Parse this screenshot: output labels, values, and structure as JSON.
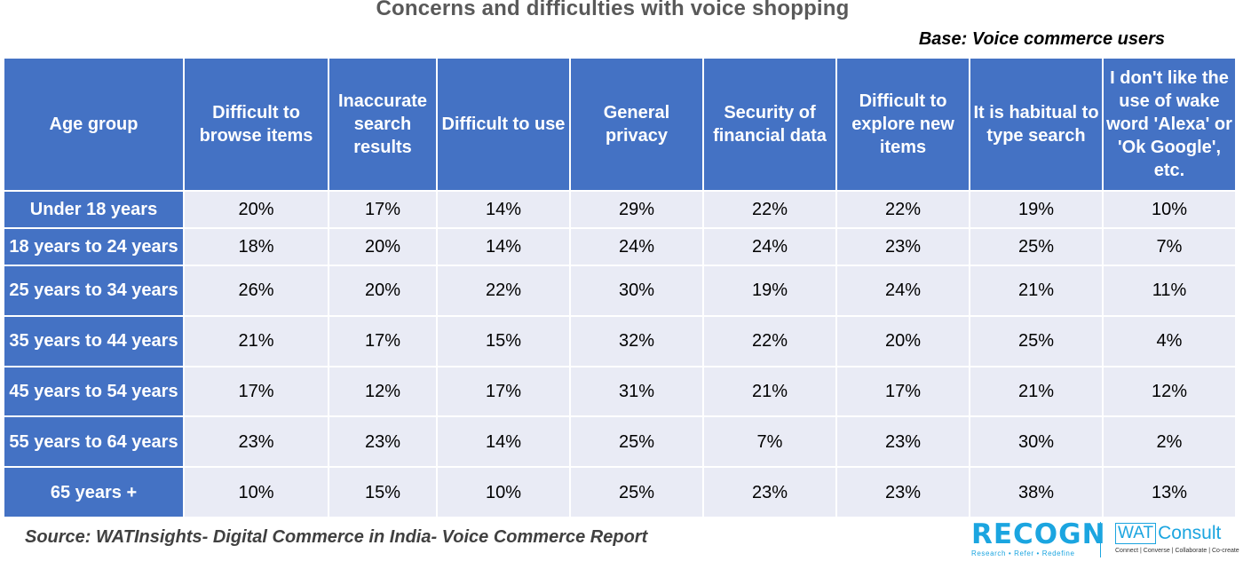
{
  "title": "Concerns and difficulties with voice shopping",
  "base_note": "Base: Voice commerce users",
  "source": "Source: WATInsights- Digital Commerce in India- Voice Commerce Report",
  "logos": {
    "recogn_word": "RECOGN",
    "recogn_tagline": "Research • Refer • Redefine",
    "wat_box": "WAT",
    "wat_word": "Consult",
    "wat_tagline": "Connect | Converse | Collaborate | Co-create"
  },
  "colors": {
    "header_bg": "#4472C4",
    "cell_bg": "#E9EBF5",
    "logo": "#1BA5E0"
  },
  "chart_data": {
    "type": "table",
    "title": "Concerns and difficulties with voice shopping",
    "columns": [
      "Age group",
      "Difficult to browse items",
      "Inaccurate search results",
      "Difficult to use",
      "General privacy",
      "Security of financial data",
      "Difficult to explore new items",
      "It is habitual to type search",
      "I don't like the use of wake word 'Alexa' or 'Ok Google', etc."
    ],
    "rows": [
      [
        "Under 18 years",
        "20%",
        "17%",
        "14%",
        "29%",
        "22%",
        "22%",
        "19%",
        "10%"
      ],
      [
        "18 years to 24 years",
        "18%",
        "20%",
        "14%",
        "24%",
        "24%",
        "23%",
        "25%",
        "7%"
      ],
      [
        "25 years to 34 years",
        "26%",
        "20%",
        "22%",
        "30%",
        "19%",
        "24%",
        "21%",
        "11%"
      ],
      [
        "35 years to 44 years",
        "21%",
        "17%",
        "15%",
        "32%",
        "22%",
        "20%",
        "25%",
        "4%"
      ],
      [
        "45 years to 54 years",
        "17%",
        "12%",
        "17%",
        "31%",
        "21%",
        "17%",
        "21%",
        "12%"
      ],
      [
        "55 years to 64 years",
        "23%",
        "23%",
        "14%",
        "25%",
        "7%",
        "23%",
        "30%",
        "2%"
      ],
      [
        "65 years +",
        "10%",
        "15%",
        "10%",
        "25%",
        "23%",
        "23%",
        "38%",
        "13%"
      ]
    ]
  }
}
